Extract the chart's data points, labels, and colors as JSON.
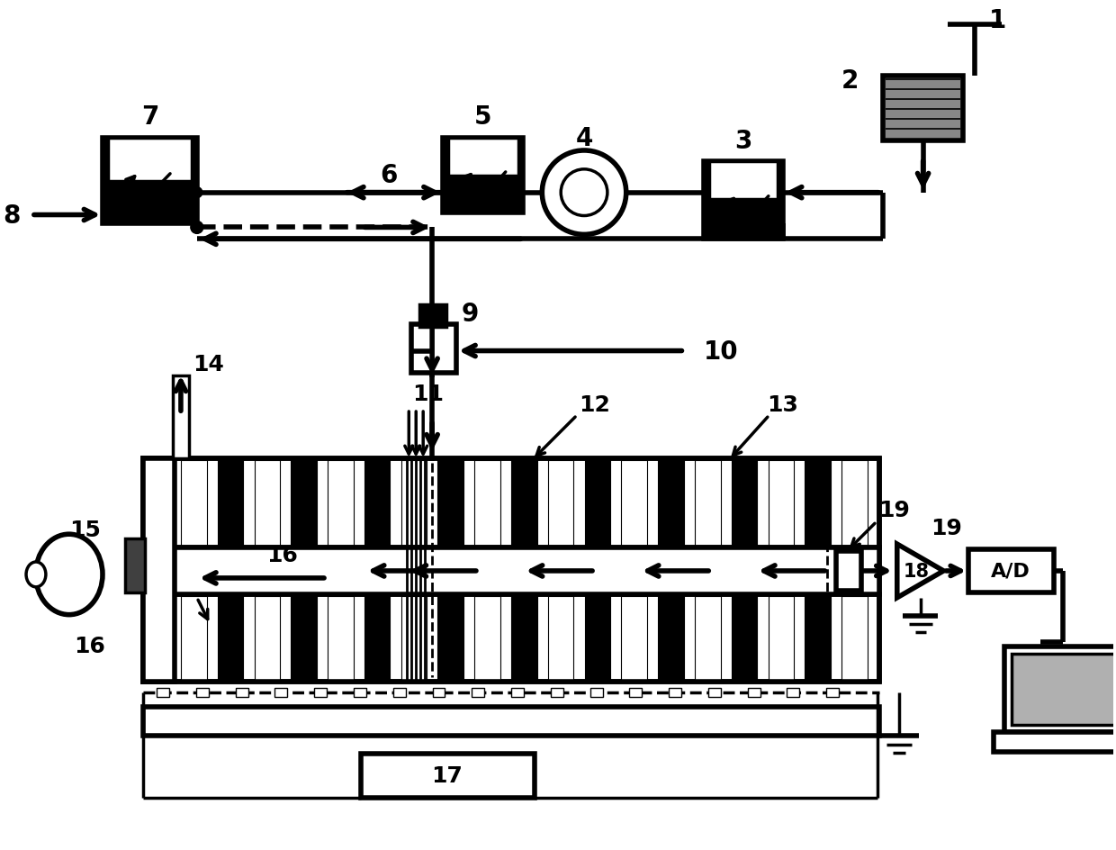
{
  "bg": "#ffffff",
  "lc": "#000000",
  "lw": 2.5,
  "blw": 4.0,
  "fw": 12.4,
  "fh": 9.45
}
